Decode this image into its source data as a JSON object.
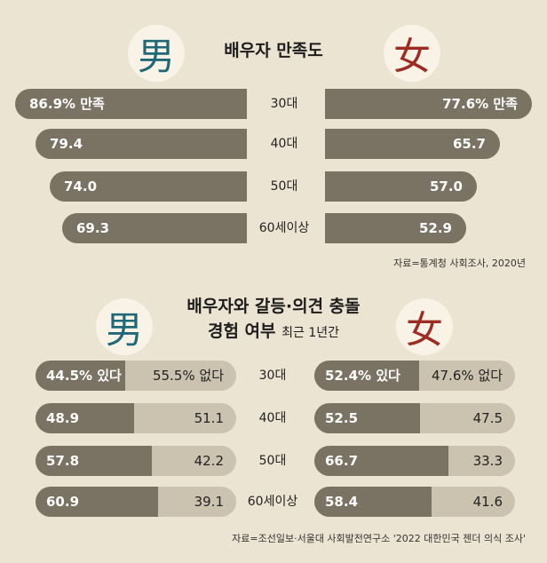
{
  "colors": {
    "male": "#1f6878",
    "female": "#9e2b22",
    "bar_dark": "#7a7263",
    "bar_light": "#cbc2b0",
    "background": "#ece4d2"
  },
  "symbols": {
    "male": "男",
    "female": "女"
  },
  "chart_data": [
    {
      "type": "bar",
      "title": "배우자 만족도",
      "categories": [
        "30대",
        "40대",
        "50대",
        "60세이상"
      ],
      "series": [
        {
          "name": "男",
          "values": [
            86.9,
            79.4,
            74.0,
            69.3
          ]
        },
        {
          "name": "女",
          "values": [
            77.6,
            65.7,
            57.0,
            52.9
          ]
        }
      ],
      "labels": {
        "male": [
          "86.9% 만족",
          "79.4",
          "74.0",
          "69.3"
        ],
        "female": [
          "77.6% 만족",
          "65.7",
          "57.0",
          "52.9"
        ]
      },
      "source": "자료=통계청 사회조사, 2020년"
    },
    {
      "type": "bar",
      "title_line1": "배우자와 갈등·의견 충돌",
      "title_line2": "경험 여부",
      "subtitle": "최근 1년간",
      "categories": [
        "30대",
        "40대",
        "50대",
        "60세이상"
      ],
      "male": {
        "yes": [
          44.5,
          48.9,
          57.8,
          60.9
        ],
        "no": [
          55.5,
          51.1,
          42.2,
          39.1
        ]
      },
      "female": {
        "yes": [
          52.4,
          52.5,
          66.7,
          58.4
        ],
        "no": [
          47.6,
          47.5,
          33.3,
          41.6
        ]
      },
      "labels": {
        "male_yes": [
          "44.5% 있다",
          "48.9",
          "57.8",
          "60.9"
        ],
        "male_no": [
          "55.5% 없다",
          "51.1",
          "42.2",
          "39.1"
        ],
        "female_yes": [
          "52.4% 있다",
          "52.5",
          "66.7",
          "58.4"
        ],
        "female_no": [
          "47.6% 없다",
          "47.5",
          "33.3",
          "41.6"
        ]
      },
      "source": "자료=조선일보·서울대 사회발전연구소 '2022 대한민국 젠더 의식 조사'"
    }
  ]
}
